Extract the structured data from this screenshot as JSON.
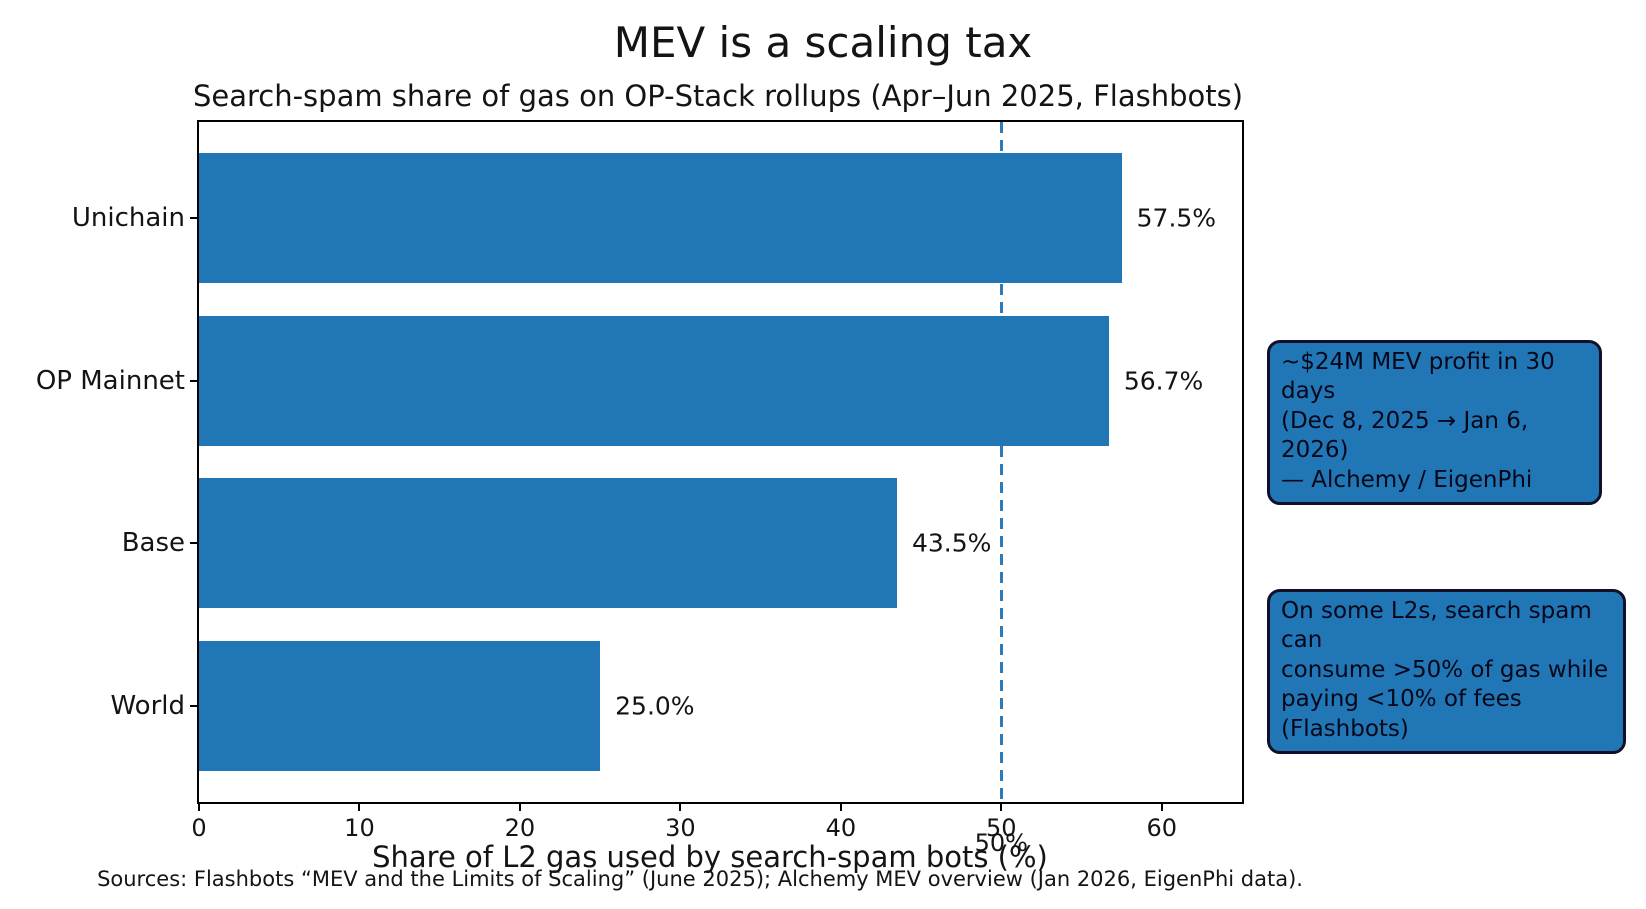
{
  "chart_data": {
    "type": "bar",
    "orientation": "horizontal",
    "title": "MEV is a scaling tax",
    "subtitle": "Search-spam share of gas on OP-Stack rollups (Apr–Jun 2025, Flashbots)",
    "categories": [
      "Unichain",
      "OP Mainnet",
      "Base",
      "World"
    ],
    "values": [
      57.5,
      56.7,
      43.5,
      25.0
    ],
    "value_labels": [
      "57.5%",
      "56.7%",
      "43.5%",
      "25.0%"
    ],
    "xlabel": "Share of L2 gas used by search-spam bots (%)",
    "xlim": [
      0,
      65
    ],
    "xticks": [
      0,
      10,
      20,
      30,
      40,
      50,
      60
    ],
    "grid": false,
    "legend_position": "none",
    "bar_color": "#2176b5",
    "reference_line": {
      "x": 50,
      "label": "50%",
      "style": "dashed",
      "color": "#2b7bba"
    }
  },
  "annotations": [
    {
      "text": "~$24M MEV profit in 30 days\n(Dec 8, 2025 → Jan 6, 2026)\n— Alchemy / EigenPhi",
      "bg_color": "#2176b5"
    },
    {
      "text": "On some L2s, search spam can\nconsume >50% of gas while\npaying <10% of fees (Flashbots)",
      "bg_color": "#2176b5"
    }
  ],
  "footer": {
    "sources": "Sources: Flashbots “MEV and the Limits of Scaling” (June 2025); Alchemy MEV overview (Jan 2026, EigenPhi data)."
  }
}
